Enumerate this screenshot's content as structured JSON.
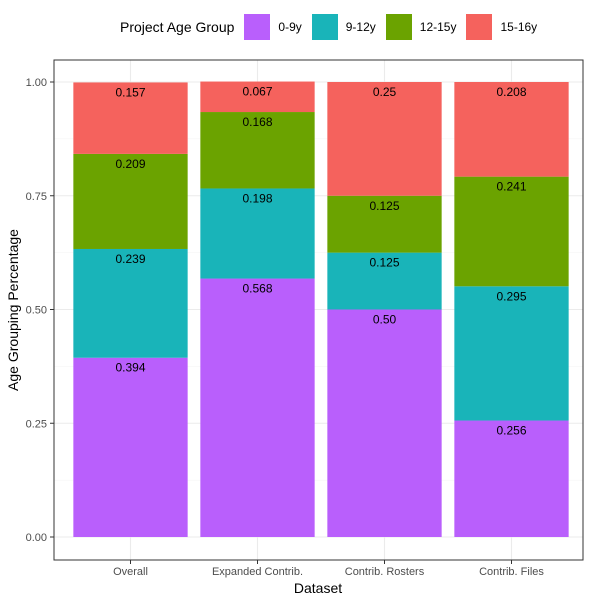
{
  "chart_data": {
    "type": "bar",
    "stacked": true,
    "xlabel": "Dataset",
    "ylabel": "Age Grouping Percentage",
    "ylim": [
      0,
      1
    ],
    "yticks": [
      "0.00",
      "0.25",
      "0.50",
      "0.75",
      "1.00"
    ],
    "yticks_values": [
      0,
      0.25,
      0.5,
      0.75,
      1.0
    ],
    "grid": true,
    "legend_position": "top",
    "legend_title": "Project Age Group",
    "categories": [
      "Overall",
      "Expanded Contrib.",
      "Contrib. Rosters",
      "Contrib. Files"
    ],
    "series": [
      {
        "name": "0-9y",
        "color": "#b95ffc",
        "values": [
          0.394,
          0.568,
          0.5,
          0.256
        ],
        "labels": [
          "0.394",
          "0.568",
          "0.50",
          "0.256"
        ]
      },
      {
        "name": "9-12y",
        "color": "#19b4b9",
        "values": [
          0.239,
          0.198,
          0.125,
          0.295
        ],
        "labels": [
          "0.239",
          "0.198",
          "0.125",
          "0.295"
        ]
      },
      {
        "name": "12-15y",
        "color": "#6ba300",
        "values": [
          0.209,
          0.168,
          0.125,
          0.241
        ],
        "labels": [
          "0.209",
          "0.168",
          "0.125",
          "0.241"
        ]
      },
      {
        "name": "15-16y",
        "color": "#f5625d",
        "values": [
          0.157,
          0.067,
          0.25,
          0.208
        ],
        "labels": [
          "0.157",
          "0.067",
          "0.25",
          "0.208"
        ]
      }
    ]
  }
}
